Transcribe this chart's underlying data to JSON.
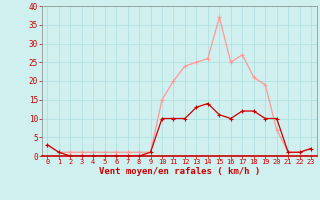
{
  "x": [
    0,
    1,
    2,
    3,
    4,
    5,
    6,
    7,
    8,
    9,
    10,
    11,
    12,
    13,
    14,
    15,
    16,
    17,
    18,
    19,
    20,
    21,
    22,
    23
  ],
  "wind_mean": [
    3,
    1,
    0,
    0,
    0,
    0,
    0,
    0,
    0,
    1,
    10,
    10,
    10,
    13,
    14,
    11,
    10,
    12,
    12,
    10,
    10,
    1,
    1,
    2
  ],
  "wind_gust": [
    3,
    1,
    1,
    1,
    1,
    1,
    1,
    1,
    1,
    1,
    15,
    20,
    24,
    25,
    26,
    37,
    25,
    27,
    21,
    19,
    7,
    1,
    1,
    2
  ],
  "bg_color": "#cff0ee",
  "grid_color": "#aadddd",
  "line_mean_color": "#cc0000",
  "line_gust_color": "#ff9999",
  "marker_mean_color": "#cc0000",
  "marker_gust_color": "#ff9999",
  "xlabel": "Vent moyen/en rafales ( km/h )",
  "ylim": [
    0,
    40
  ],
  "yticks": [
    0,
    5,
    10,
    15,
    20,
    25,
    30,
    35,
    40
  ],
  "xlim": [
    -0.5,
    23.5
  ]
}
